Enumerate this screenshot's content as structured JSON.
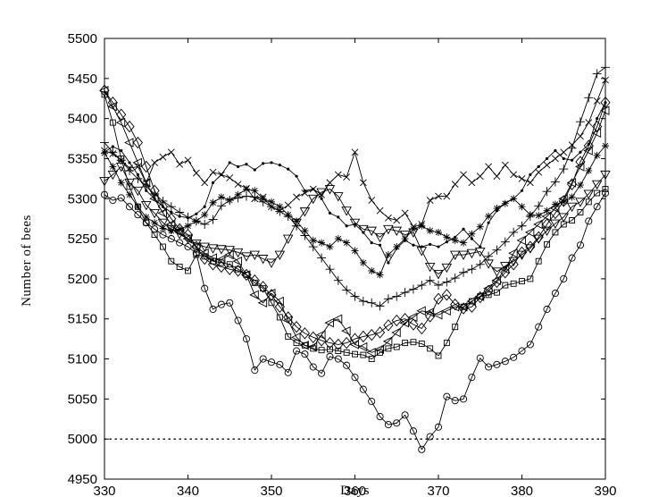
{
  "chart_data": {
    "type": "line",
    "title": "",
    "xlabel": "Days",
    "ylabel": "Number of bees",
    "xlim": [
      330,
      390
    ],
    "ylim": [
      4950,
      5500
    ],
    "xticks": [
      330,
      340,
      350,
      360,
      370,
      380,
      390
    ],
    "yticks": [
      4950,
      5000,
      5050,
      5100,
      5150,
      5200,
      5250,
      5300,
      5350,
      5400,
      5450,
      5500
    ],
    "grid": false,
    "legend": "none",
    "reference_line": {
      "y": 5000,
      "style": "dotted"
    },
    "x": [
      330,
      331,
      332,
      333,
      334,
      335,
      336,
      337,
      338,
      339,
      340,
      341,
      342,
      343,
      344,
      345,
      346,
      347,
      348,
      349,
      350,
      351,
      352,
      353,
      354,
      355,
      356,
      357,
      358,
      359,
      360,
      361,
      362,
      363,
      364,
      365,
      366,
      367,
      368,
      369,
      370,
      371,
      372,
      373,
      374,
      375,
      376,
      377,
      378,
      379,
      380,
      381,
      382,
      383,
      384,
      385,
      386,
      387,
      388,
      389,
      390
    ],
    "series": [
      {
        "marker": "circle",
        "values": [
          5305,
          5298,
          5301,
          5290,
          5280,
          5270,
          5262,
          5255,
          5250,
          5245,
          5240,
          5232,
          5188,
          5162,
          5168,
          5170,
          5148,
          5125,
          5086,
          5100,
          5096,
          5093,
          5083,
          5110,
          5106,
          5090,
          5082,
          5103,
          5100,
          5092,
          5077,
          5062,
          5047,
          5028,
          5018,
          5020,
          5030,
          5010,
          4987,
          5003,
          5015,
          5053,
          5048,
          5050,
          5077,
          5101,
          5090,
          5093,
          5097,
          5102,
          5110,
          5118,
          5140,
          5162,
          5182,
          5200,
          5226,
          5242,
          5272,
          5290,
          5307
        ]
      },
      {
        "marker": "square",
        "values": [
          5430,
          5395,
          5350,
          5315,
          5290,
          5270,
          5255,
          5240,
          5222,
          5215,
          5210,
          5230,
          5228,
          5222,
          5220,
          5218,
          5212,
          5205,
          5195,
          5188,
          5170,
          5152,
          5128,
          5120,
          5117,
          5113,
          5111,
          5112,
          5110,
          5108,
          5106,
          5105,
          5100,
          5108,
          5113,
          5115,
          5120,
          5121,
          5119,
          5113,
          5104,
          5120,
          5140,
          5165,
          5172,
          5178,
          5180,
          5183,
          5192,
          5194,
          5197,
          5200,
          5222,
          5243,
          5258,
          5268,
          5273,
          5283,
          5296,
          5307,
          5312
        ]
      },
      {
        "marker": "diamond",
        "values": [
          5435,
          5420,
          5405,
          5390,
          5370,
          5340,
          5310,
          5290,
          5275,
          5262,
          5255,
          5240,
          5225,
          5218,
          5215,
          5212,
          5210,
          5205,
          5198,
          5190,
          5180,
          5165,
          5152,
          5140,
          5132,
          5127,
          5123,
          5120,
          5118,
          5120,
          5125,
          5128,
          5130,
          5133,
          5142,
          5148,
          5150,
          5143,
          5138,
          5153,
          5175,
          5180,
          5168,
          5163,
          5165,
          5177,
          5185,
          5196,
          5208,
          5218,
          5233,
          5240,
          5252,
          5268,
          5282,
          5297,
          5318,
          5346,
          5366,
          5390,
          5420
        ]
      },
      {
        "marker": "triangle-left",
        "values": [
          5435,
          5415,
          5395,
          5370,
          5345,
          5320,
          5300,
          5282,
          5268,
          5258,
          5250,
          5240,
          5232,
          5226,
          5224,
          5230,
          5222,
          5205,
          5180,
          5170,
          5182,
          5172,
          5148,
          5127,
          5117,
          5115,
          5130,
          5145,
          5150,
          5135,
          5118,
          5115,
          5108,
          5112,
          5122,
          5133,
          5145,
          5152,
          5160,
          5158,
          5155,
          5160,
          5165,
          5165,
          5172,
          5178,
          5188,
          5198,
          5212,
          5232,
          5248,
          5258,
          5268,
          5278,
          5288,
          5300,
          5320,
          5340,
          5360,
          5382,
          5410
        ]
      },
      {
        "marker": "triangle-down",
        "values": [
          5322,
          5330,
          5340,
          5320,
          5310,
          5292,
          5282,
          5270,
          5262,
          5256,
          5250,
          5244,
          5240,
          5238,
          5237,
          5236,
          5233,
          5228,
          5230,
          5225,
          5220,
          5230,
          5250,
          5270,
          5284,
          5300,
          5308,
          5312,
          5303,
          5285,
          5270,
          5262,
          5260,
          5252,
          5262,
          5260,
          5255,
          5258,
          5235,
          5215,
          5206,
          5214,
          5230,
          5230,
          5232,
          5234,
          5219,
          5209,
          5216,
          5222,
          5230,
          5238,
          5250,
          5260,
          5269,
          5277,
          5290,
          5296,
          5306,
          5318,
          5330
        ]
      },
      {
        "marker": "x",
        "values": [
          5360,
          5356,
          5348,
          5338,
          5340,
          5320,
          5345,
          5352,
          5358,
          5343,
          5348,
          5332,
          5320,
          5333,
          5330,
          5326,
          5318,
          5313,
          5300,
          5302,
          5290,
          5285,
          5292,
          5302,
          5307,
          5312,
          5305,
          5320,
          5330,
          5327,
          5358,
          5320,
          5298,
          5285,
          5276,
          5273,
          5282,
          5265,
          5268,
          5298,
          5303,
          5303,
          5318,
          5330,
          5320,
          5328,
          5340,
          5328,
          5342,
          5330,
          5325,
          5320,
          5333,
          5342,
          5350,
          5358,
          5367,
          5378,
          5395,
          5422,
          5448
        ]
      },
      {
        "marker": "plus",
        "values": [
          5370,
          5358,
          5348,
          5335,
          5325,
          5315,
          5306,
          5297,
          5290,
          5283,
          5277,
          5272,
          5268,
          5274,
          5291,
          5298,
          5301,
          5303,
          5302,
          5296,
          5290,
          5284,
          5278,
          5266,
          5254,
          5240,
          5226,
          5212,
          5198,
          5186,
          5178,
          5172,
          5170,
          5166,
          5175,
          5178,
          5183,
          5187,
          5192,
          5198,
          5192,
          5196,
          5201,
          5208,
          5212,
          5218,
          5228,
          5236,
          5246,
          5258,
          5266,
          5278,
          5291,
          5309,
          5321,
          5337,
          5363,
          5396,
          5426,
          5456,
          5464
        ]
      },
      {
        "marker": "star",
        "values": [
          5357,
          5340,
          5320,
          5305,
          5290,
          5277,
          5270,
          5263,
          5260,
          5262,
          5266,
          5272,
          5280,
          5295,
          5302,
          5298,
          5305,
          5312,
          5310,
          5300,
          5296,
          5290,
          5280,
          5272,
          5260,
          5248,
          5245,
          5240,
          5250,
          5245,
          5235,
          5220,
          5210,
          5205,
          5230,
          5240,
          5250,
          5262,
          5266,
          5260,
          5258,
          5252,
          5248,
          5245,
          5256,
          5265,
          5278,
          5288,
          5294,
          5300,
          5290,
          5280,
          5279,
          5285,
          5293,
          5296,
          5302,
          5317,
          5335,
          5354,
          5366
        ]
      },
      {
        "marker": "dot",
        "values": [
          5358,
          5365,
          5360,
          5345,
          5330,
          5310,
          5300,
          5290,
          5283,
          5278,
          5276,
          5281,
          5290,
          5320,
          5330,
          5345,
          5340,
          5343,
          5336,
          5344,
          5345,
          5342,
          5337,
          5328,
          5310,
          5312,
          5300,
          5282,
          5277,
          5266,
          5268,
          5258,
          5245,
          5242,
          5220,
          5238,
          5248,
          5242,
          5240,
          5243,
          5240,
          5246,
          5252,
          5262,
          5250,
          5240,
          5270,
          5285,
          5295,
          5300,
          5310,
          5330,
          5340,
          5350,
          5360,
          5350,
          5348,
          5358,
          5368,
          5400,
          5420
        ]
      }
    ]
  }
}
